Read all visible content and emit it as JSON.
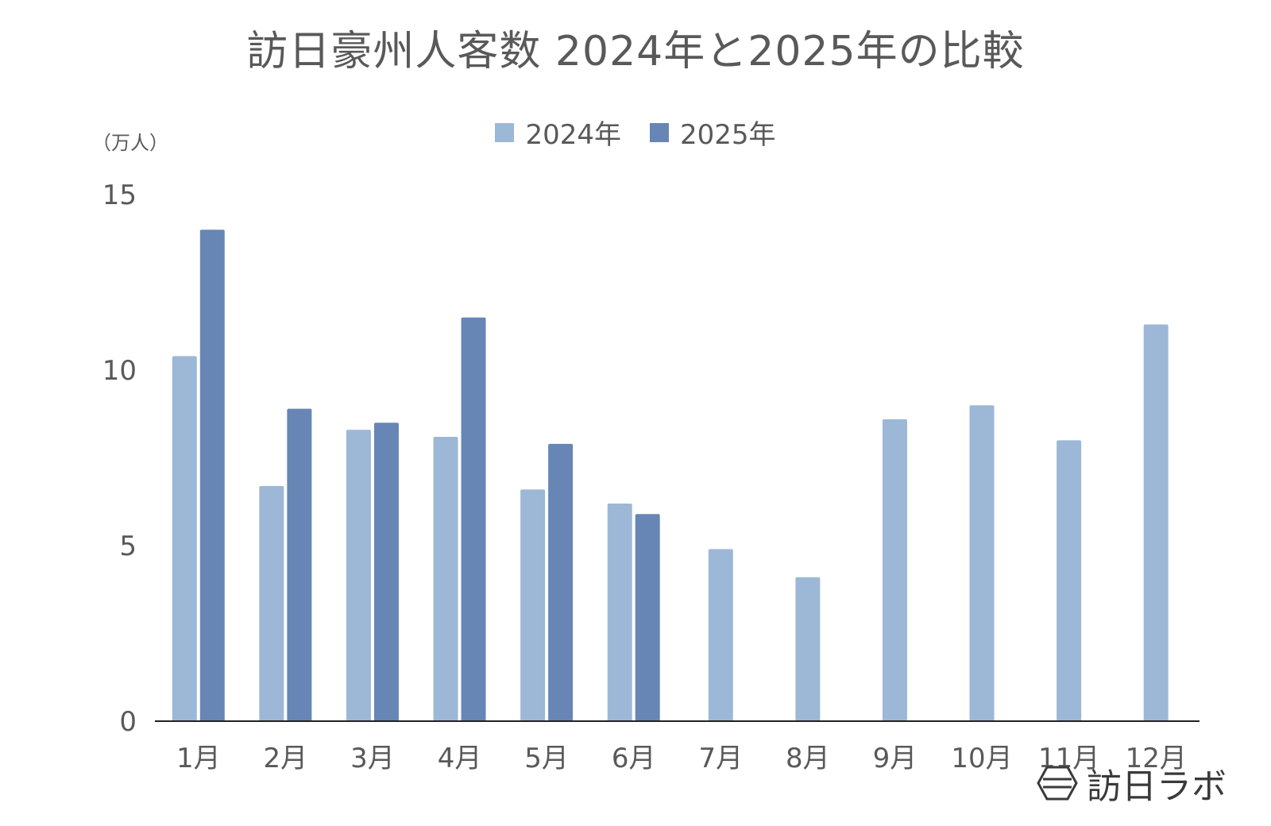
{
  "chart_data": {
    "type": "bar",
    "title": "訪日豪州人客数 2024年と2025年の比較",
    "ylabel": "（万人）",
    "ylim": [
      0,
      15
    ],
    "yticks": [
      "0",
      "5",
      "10",
      "15"
    ],
    "categories": [
      "1月",
      "2月",
      "3月",
      "4月",
      "5月",
      "6月",
      "7月",
      "8月",
      "9月",
      "10月",
      "11月",
      "12月"
    ],
    "series": [
      {
        "name": "2024年",
        "color": "#9db8d6",
        "values": [
          10.4,
          6.7,
          8.3,
          8.1,
          6.6,
          6.2,
          4.9,
          4.1,
          8.6,
          9.0,
          8.0,
          11.3
        ]
      },
      {
        "name": "2025年",
        "color": "#6786b5",
        "values": [
          14.0,
          8.9,
          8.5,
          11.5,
          7.9,
          5.9,
          null,
          null,
          null,
          null,
          null,
          null
        ]
      }
    ],
    "legend_position": "top-center",
    "grid": false
  },
  "watermark": {
    "text": "訪日ラボ",
    "icon": "hexagon-logo-icon"
  }
}
